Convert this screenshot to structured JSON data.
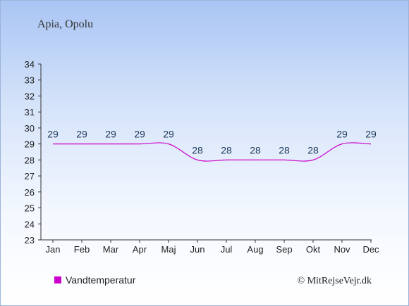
{
  "chart_data": {
    "type": "line",
    "title": "Apia, Opolu",
    "categories": [
      "Jan",
      "Feb",
      "Mar",
      "Apr",
      "Maj",
      "Jun",
      "Jul",
      "Aug",
      "Sep",
      "Okt",
      "Nov",
      "Dec"
    ],
    "series": [
      {
        "name": "Vandtemperatur",
        "values": [
          29,
          29,
          29,
          29,
          29,
          28,
          28,
          28,
          28,
          28,
          29,
          29
        ],
        "color": "#cc00cc"
      }
    ],
    "ylim": [
      23,
      34
    ],
    "yticks": [
      23,
      24,
      25,
      26,
      27,
      28,
      29,
      30,
      31,
      32,
      33,
      34
    ],
    "xlabel": "",
    "ylabel": "",
    "grid": false,
    "legend_position": "bottom-left",
    "credit": "© MitRejseVejr.dk"
  }
}
